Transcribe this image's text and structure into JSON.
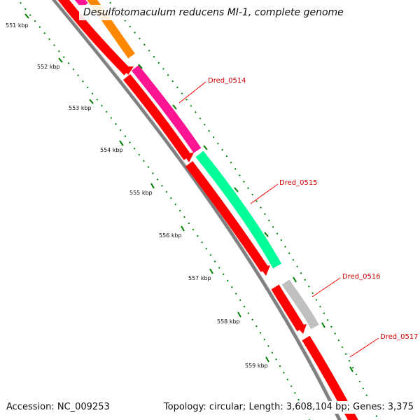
{
  "title": "Desulfotomaculum reducens MI-1, complete genome",
  "footer": {
    "accession": "Accession: NC_009253",
    "summary": "Topology: circular; Length: 3,608,104 bp; Genes: 3,375"
  },
  "ticks": [
    {
      "label": "551 kbp"
    },
    {
      "label": "552 kbp"
    },
    {
      "label": "553 kbp"
    },
    {
      "label": "554 kbp"
    },
    {
      "label": "555 kbp"
    },
    {
      "label": "556 kbp"
    },
    {
      "label": "557 kbp"
    },
    {
      "label": "558 kbp"
    },
    {
      "label": "559 kbp"
    }
  ],
  "genes": [
    {
      "name": "Dred_0514",
      "track": "outer",
      "color": "#ff1493"
    },
    {
      "name": "Dred_0515",
      "track": "outer",
      "color": "#00ff99"
    },
    {
      "name": "Dred_0516",
      "track": "outer",
      "color": "#c0c0c0"
    },
    {
      "name": "Dred_0517",
      "track": "inner",
      "color": "#ff0000"
    }
  ],
  "colors": {
    "backbone": "#808080",
    "cds": "#ff0000",
    "orange_feature": "#ff8800",
    "tick": "#008000",
    "label_line": "#ff0000"
  }
}
